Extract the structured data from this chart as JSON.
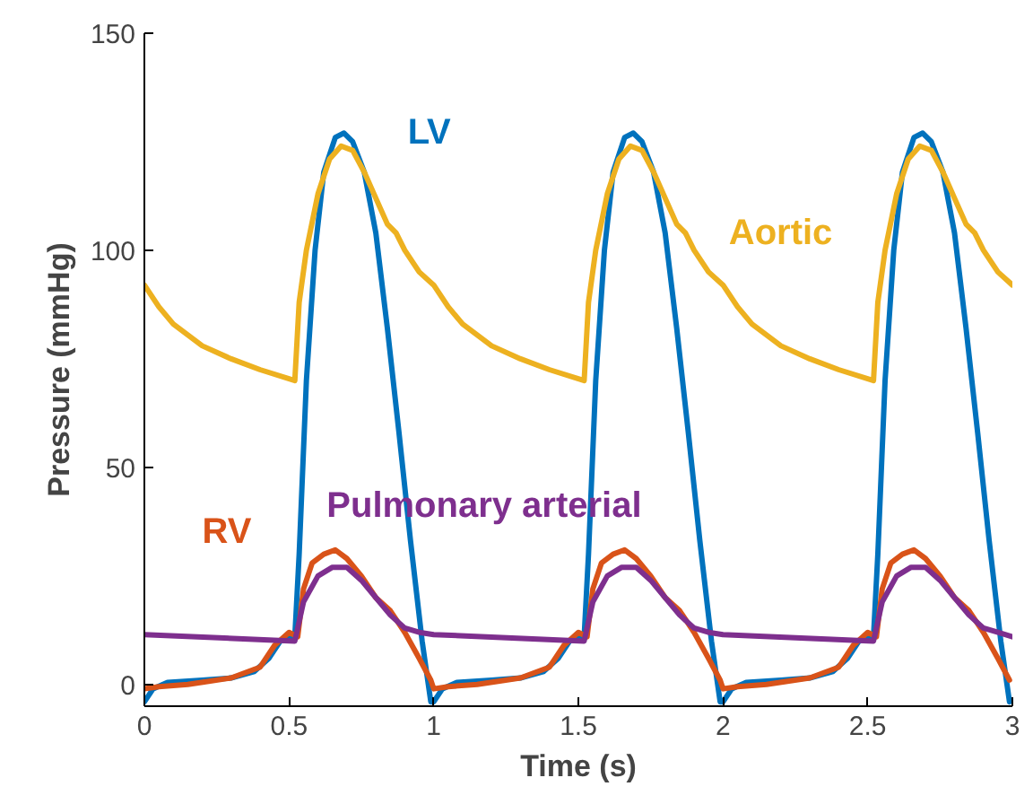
{
  "chart_data": {
    "type": "line",
    "xlabel": "Time (s)",
    "ylabel": "Pressure (mmHg)",
    "xlim": [
      0,
      3
    ],
    "ylim": [
      -5,
      150
    ],
    "xticks": [
      0,
      0.5,
      1,
      1.5,
      2,
      2.5,
      3
    ],
    "yticks": [
      0,
      50,
      100,
      150
    ],
    "grid": false,
    "series": [
      {
        "name": "LV",
        "color": "#0072bd",
        "x": [
          0,
          0.03,
          0.08,
          0.2,
          0.3,
          0.38,
          0.43,
          0.47,
          0.52,
          0.535,
          0.56,
          0.59,
          0.62,
          0.66,
          0.69,
          0.72,
          0.76,
          0.8,
          0.84,
          0.88,
          0.92,
          0.96,
          0.99,
          1.0,
          1.03,
          1.08,
          1.2,
          1.3,
          1.38,
          1.43,
          1.47,
          1.52,
          1.535,
          1.56,
          1.59,
          1.62,
          1.66,
          1.69,
          1.72,
          1.76,
          1.8,
          1.84,
          1.88,
          1.92,
          1.96,
          1.99,
          2.0,
          2.03,
          2.08,
          2.2,
          2.3,
          2.38,
          2.43,
          2.47,
          2.52,
          2.535,
          2.56,
          2.59,
          2.62,
          2.66,
          2.69,
          2.72,
          2.76,
          2.8,
          2.84,
          2.88,
          2.92,
          2.96,
          2.99
        ],
        "values": [
          -4,
          -1,
          0.5,
          1,
          1.5,
          3,
          6,
          10,
          11,
          30,
          70,
          100,
          118,
          126,
          127,
          125,
          118,
          104,
          82,
          58,
          33,
          10,
          -4,
          -4,
          -1,
          0.5,
          1,
          1.5,
          3,
          6,
          10,
          11,
          30,
          70,
          100,
          118,
          126,
          127,
          125,
          118,
          104,
          82,
          58,
          33,
          10,
          -4,
          -4,
          -1,
          0.5,
          1,
          1.5,
          3,
          6,
          10,
          11,
          30,
          70,
          100,
          118,
          126,
          127,
          125,
          118,
          104,
          82,
          58,
          33,
          10,
          -4
        ]
      },
      {
        "name": "Aortic",
        "color": "#edb120",
        "x": [
          0,
          0.05,
          0.1,
          0.2,
          0.3,
          0.4,
          0.52,
          0.535,
          0.56,
          0.6,
          0.64,
          0.68,
          0.72,
          0.76,
          0.8,
          0.84,
          0.87,
          0.9,
          0.95,
          1.0,
          1.05,
          1.1,
          1.2,
          1.3,
          1.4,
          1.52,
          1.535,
          1.56,
          1.6,
          1.64,
          1.68,
          1.72,
          1.76,
          1.8,
          1.84,
          1.87,
          1.9,
          1.95,
          2.0,
          2.05,
          2.1,
          2.2,
          2.3,
          2.4,
          2.52,
          2.535,
          2.56,
          2.6,
          2.64,
          2.68,
          2.72,
          2.76,
          2.8,
          2.84,
          2.87,
          2.9,
          2.95,
          3.0
        ],
        "values": [
          92,
          87,
          83,
          78,
          75,
          72.5,
          70,
          88,
          100,
          113,
          121,
          124,
          123,
          118,
          112,
          106,
          104,
          100,
          95,
          92,
          87,
          83,
          78,
          75,
          72.5,
          70,
          88,
          100,
          113,
          121,
          124,
          123,
          118,
          112,
          106,
          104,
          100,
          95,
          92,
          87,
          83,
          78,
          75,
          72.5,
          70,
          88,
          100,
          113,
          121,
          124,
          123,
          118,
          112,
          106,
          104,
          100,
          95,
          92
        ]
      },
      {
        "name": "RV",
        "color": "#d95319",
        "x": [
          0,
          0.05,
          0.15,
          0.3,
          0.4,
          0.45,
          0.5,
          0.53,
          0.55,
          0.58,
          0.62,
          0.66,
          0.7,
          0.75,
          0.8,
          0.85,
          0.9,
          0.95,
          0.99,
          1.0,
          1.05,
          1.15,
          1.3,
          1.4,
          1.45,
          1.5,
          1.53,
          1.55,
          1.58,
          1.62,
          1.66,
          1.7,
          1.75,
          1.8,
          1.85,
          1.9,
          1.95,
          1.99,
          2.0,
          2.05,
          2.15,
          2.3,
          2.4,
          2.45,
          2.5,
          2.53,
          2.55,
          2.58,
          2.62,
          2.66,
          2.7,
          2.75,
          2.8,
          2.85,
          2.9,
          2.95,
          2.99
        ],
        "values": [
          -1,
          -0.5,
          0,
          1.5,
          4,
          9,
          12,
          11,
          22,
          28,
          30,
          31,
          29,
          25,
          20,
          17,
          12,
          6,
          1,
          -1,
          -0.5,
          0,
          1.5,
          4,
          9,
          12,
          11,
          22,
          28,
          30,
          31,
          29,
          25,
          20,
          17,
          12,
          6,
          1,
          -1,
          -0.5,
          0,
          1.5,
          4,
          9,
          12,
          11,
          22,
          28,
          30,
          31,
          29,
          25,
          20,
          17,
          12,
          6,
          1
        ]
      },
      {
        "name": "Pulmonary arterial",
        "color": "#7e2f8e",
        "x": [
          0,
          0.52,
          0.55,
          0.6,
          0.65,
          0.7,
          0.75,
          0.8,
          0.85,
          0.9,
          0.95,
          1.0,
          1.52,
          1.55,
          1.6,
          1.65,
          1.7,
          1.75,
          1.8,
          1.85,
          1.9,
          1.95,
          2.0,
          2.52,
          2.55,
          2.6,
          2.65,
          2.7,
          2.75,
          2.8,
          2.85,
          2.9,
          2.95,
          3.0
        ],
        "values": [
          11.5,
          10,
          19,
          25,
          27,
          27,
          24,
          20,
          16,
          13,
          12,
          11.5,
          10,
          19,
          25,
          27,
          27,
          24,
          20,
          16,
          13,
          12,
          11.5,
          10,
          19,
          25,
          27,
          27,
          24,
          20,
          16,
          13,
          12,
          11
        ]
      }
    ]
  }
}
